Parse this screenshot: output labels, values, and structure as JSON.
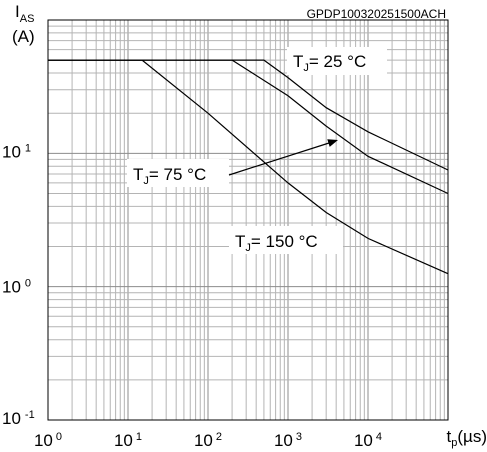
{
  "chart_data": {
    "type": "line",
    "title": "GPDP100320251500ACH",
    "xlabel": "t",
    "xlabel_sub": "p",
    "xunit": "(µs)",
    "ylabel": "I",
    "ylabel_sub": "AS",
    "yunit": "(A)",
    "x_scale": "log",
    "y_scale": "log",
    "xlim": [
      1,
      100000
    ],
    "ylim": [
      0.1,
      100
    ],
    "grid": true,
    "x_ticks": [
      {
        "base": "10",
        "exp": "0",
        "value": 1
      },
      {
        "base": "10",
        "exp": "1",
        "value": 10
      },
      {
        "base": "10",
        "exp": "2",
        "value": 100
      },
      {
        "base": "10",
        "exp": "3",
        "value": 1000
      },
      {
        "base": "10",
        "exp": "4",
        "value": 10000
      }
    ],
    "y_ticks": [
      {
        "base": "10",
        "exp": "-1",
        "value": 0.1
      },
      {
        "base": "10",
        "exp": "0",
        "value": 1
      },
      {
        "base": "10",
        "exp": "1",
        "value": 10
      }
    ],
    "series": [
      {
        "name": "TJ= 25 °C",
        "label_main": "T",
        "label_sub": "J",
        "label_rest": "= 25 °C",
        "points": [
          [
            1,
            50
          ],
          [
            500,
            50
          ],
          [
            1000,
            37
          ],
          [
            3000,
            22
          ],
          [
            10000,
            14.5
          ],
          [
            100000,
            7.5
          ]
        ]
      },
      {
        "name": "TJ= 75 °C",
        "label_main": "T",
        "label_sub": "J",
        "label_rest": "= 75 °C",
        "points": [
          [
            1,
            50
          ],
          [
            200,
            50
          ],
          [
            1000,
            27
          ],
          [
            3000,
            16
          ],
          [
            10000,
            9.5
          ],
          [
            100000,
            5
          ]
        ]
      },
      {
        "name": "TJ= 150 °C",
        "label_main": "T",
        "label_sub": "J",
        "label_rest": "= 150 °C",
        "points": [
          [
            1,
            50
          ],
          [
            15,
            50
          ],
          [
            100,
            20
          ],
          [
            1000,
            6
          ],
          [
            3000,
            3.6
          ],
          [
            10000,
            2.3
          ],
          [
            100000,
            1.25
          ]
        ]
      }
    ]
  }
}
